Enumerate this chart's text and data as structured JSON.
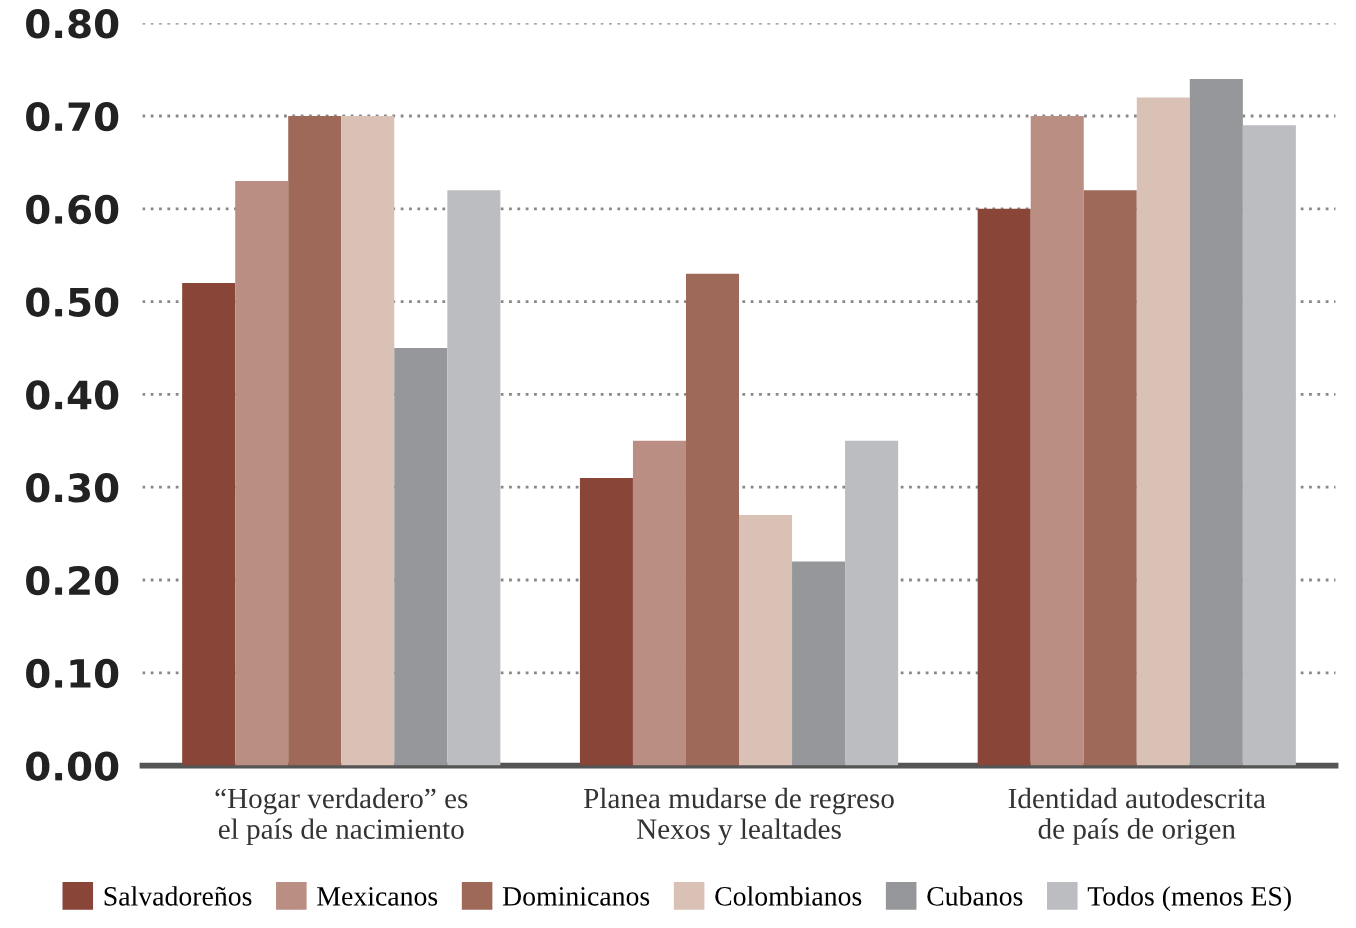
{
  "chart_data": {
    "type": "bar",
    "categories": [
      "“Hogar verdadero” es\nel país de nacimiento",
      "Planea mudarse de regreso\nNexos y lealtades",
      "Identidad autodescrita\nde país de origen"
    ],
    "series": [
      {
        "name": "Salvadoreños",
        "color": "#8a4539",
        "values": [
          0.52,
          0.31,
          0.6
        ]
      },
      {
        "name": "Mexicanos",
        "color": "#ba8e82",
        "values": [
          0.63,
          0.35,
          0.7
        ]
      },
      {
        "name": "Dominicanos",
        "color": "#9e6959",
        "values": [
          0.7,
          0.53,
          0.62
        ]
      },
      {
        "name": "Colombianos",
        "color": "#d9c1b5",
        "values": [
          0.7,
          0.27,
          0.72
        ]
      },
      {
        "name": "Cubanos",
        "color": "#96979b",
        "values": [
          0.45,
          0.22,
          0.74
        ]
      },
      {
        "name": "Todos (menos ES)",
        "color": "#bcbdc1",
        "values": [
          0.62,
          0.35,
          0.69
        ]
      }
    ],
    "ylim": [
      0,
      0.8
    ],
    "yticks": [
      {
        "value": 0,
        "label": "0.00"
      },
      {
        "value": 0.1,
        "label": "0.10"
      },
      {
        "value": 0.2,
        "label": "0.20"
      },
      {
        "value": 0.3,
        "label": "0.30"
      },
      {
        "value": 0.4,
        "label": "0.40"
      },
      {
        "value": 0.5,
        "label": "0.50"
      },
      {
        "value": 0.6,
        "label": "0.60"
      },
      {
        "value": 0.7,
        "label": "0.70"
      },
      {
        "value": 0.8,
        "label": "0.80"
      }
    ],
    "grid": "y",
    "legend": "bottom"
  }
}
